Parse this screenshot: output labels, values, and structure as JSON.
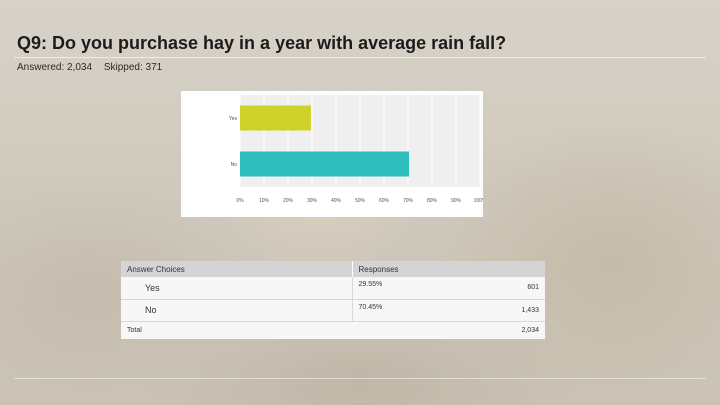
{
  "slide": {
    "title": "Q9: Do you purchase hay in a year with average rain fall?",
    "answered": "Answered: 2,034",
    "skipped": "Skipped: 371"
  },
  "chart_data": {
    "type": "bar",
    "orientation": "horizontal",
    "categories": [
      "Yes",
      "No"
    ],
    "values": [
      29.55,
      70.45
    ],
    "xlim": [
      0,
      100
    ],
    "x_tick_labels": [
      "0%",
      "10%",
      "20%",
      "30%",
      "40%",
      "50%",
      "60%",
      "70%",
      "80%",
      "90%",
      "100%"
    ],
    "colors": [
      "#cdd12a",
      "#2ebfbd"
    ],
    "grid": true,
    "title": "",
    "xlabel": "",
    "ylabel": ""
  },
  "table": {
    "headers": [
      "Answer Choices",
      "Responses"
    ],
    "rows": [
      {
        "label": "Yes",
        "percent": "29.55%",
        "count": "601"
      },
      {
        "label": "No",
        "percent": "70.45%",
        "count": "1,433"
      }
    ],
    "total_label": "Total",
    "total_count": "2,034"
  },
  "colors": {
    "title": "#1c1c1c"
  }
}
